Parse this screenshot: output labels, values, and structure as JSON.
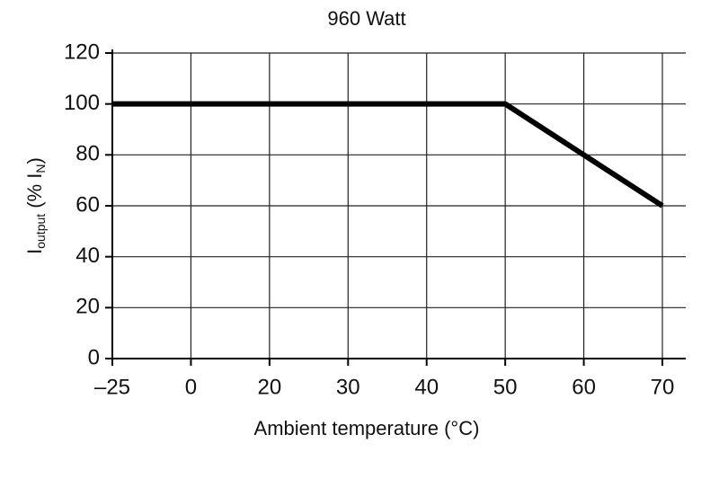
{
  "chart_data": {
    "type": "line",
    "title": "960 Watt",
    "xlabel": "Ambient temperature (°C)",
    "ylabel_parts": [
      "I",
      "output",
      " (% I",
      "N",
      ")"
    ],
    "categories": [
      "–25",
      "0",
      "20",
      "30",
      "40",
      "50",
      "60",
      "70"
    ],
    "values": [
      100,
      100,
      100,
      100,
      100,
      100,
      80,
      60
    ],
    "color": "#000000",
    "ylim": [
      0,
      120
    ],
    "yticks": [
      0,
      20,
      40,
      60,
      80,
      100,
      120
    ],
    "grid": true
  }
}
